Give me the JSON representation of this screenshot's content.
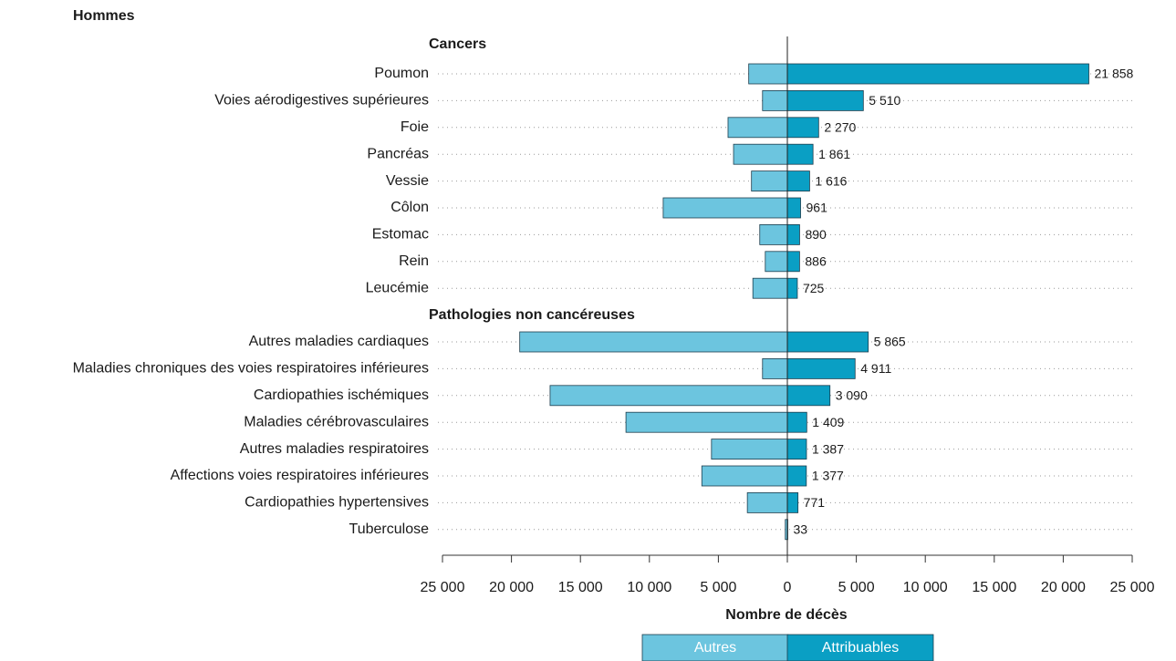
{
  "chart_data": {
    "type": "diverging-bar",
    "title": "Hommes",
    "xlabel": "Nombre de décès",
    "xlim": [
      -25000,
      25000
    ],
    "xticks": [
      {
        "value": -25000,
        "label": "25 000"
      },
      {
        "value": -20000,
        "label": "20 000"
      },
      {
        "value": -15000,
        "label": "15 000"
      },
      {
        "value": -10000,
        "label": "10 000"
      },
      {
        "value": -5000,
        "label": "5 000"
      },
      0,
      {
        "value": 5000,
        "label": "5 000"
      },
      {
        "value": 10000,
        "label": "10 000"
      },
      {
        "value": 15000,
        "label": "15 000"
      },
      {
        "value": 20000,
        "label": "20 000"
      },
      {
        "value": 25000,
        "label": "25 000"
      }
    ],
    "series": [
      {
        "name": "Autres",
        "color": "#6cc5df"
      },
      {
        "name": "Attribuables",
        "color": "#0a9fc4"
      }
    ],
    "groups": [
      {
        "name": "Cancers",
        "categories": [
          "Poumon",
          "Voies aérodigestives supérieures",
          "Foie",
          "Pancréas",
          "Vessie",
          "Côlon",
          "Estomac",
          "Rein",
          "Leucémie"
        ],
        "series": [
          {
            "values": [
              -2800,
              -1800,
              -4300,
              -3900,
              -2600,
              -9000,
              -2000,
              -1600,
              -2500
            ]
          },
          {
            "values": [
              21858,
              5510,
              2270,
              1861,
              1616,
              961,
              890,
              886,
              725
            ],
            "value_labels": [
              "21 858",
              "5 510",
              "2 270",
              "1 861",
              "1 616",
              "961",
              "890",
              "886",
              "725"
            ]
          }
        ]
      },
      {
        "name": "Pathologies non cancéreuses",
        "categories": [
          "Autres maladies cardiaques",
          "Maladies chroniques des voies respiratoires inférieures",
          "Cardiopathies ischémiques",
          "Maladies cérébrovasculaires",
          "Autres maladies respiratoires",
          "Affections voies respiratoires inférieures",
          "Cardiopathies hypertensives",
          "Tuberculose"
        ],
        "series": [
          {
            "values": [
              -19400,
              -1800,
              -17200,
              -11700,
              -5500,
              -6200,
              -2900,
              -150
            ]
          },
          {
            "values": [
              5865,
              4911,
              3090,
              1409,
              1387,
              1377,
              771,
              33
            ],
            "value_labels": [
              "5 865",
              "4 911",
              "3 090",
              "1 409",
              "1 387",
              "1 377",
              "771",
              "33"
            ]
          }
        ]
      }
    ]
  }
}
